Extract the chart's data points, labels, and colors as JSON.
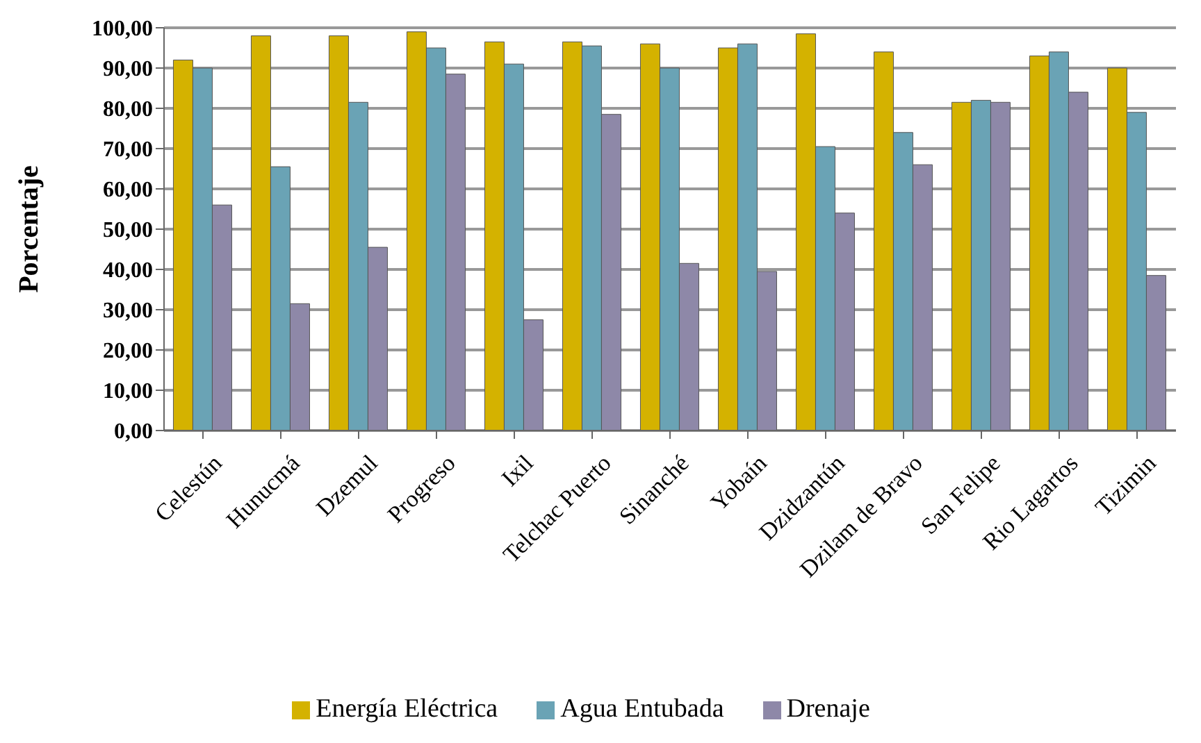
{
  "chart_data": {
    "type": "bar",
    "ylabel": "Porcentaje",
    "categories": [
      "Celestún",
      "Hunucmá",
      "Dzemul",
      "Progreso",
      "Ixil",
      "Telchac Puerto",
      "Sinanché",
      "Yobaín",
      "Dzidzantún",
      "Dzilam de Bravo",
      "San Felipe",
      "Rio Lagartos",
      "Tizimin"
    ],
    "series": [
      {
        "name": "Energía Eléctrica",
        "color": "#d4b200",
        "values": [
          92,
          98,
          98,
          99,
          96.5,
          96.5,
          96,
          95,
          98.5,
          94,
          81.5,
          93,
          90
        ]
      },
      {
        "name": "Agua Entubada",
        "color": "#6aa3b5",
        "values": [
          90,
          65.5,
          81.5,
          95,
          91,
          95.5,
          90,
          96,
          70.5,
          74,
          82,
          94,
          79
        ]
      },
      {
        "name": "Drenaje",
        "color": "#8e88a8",
        "values": [
          56,
          31.5,
          45.5,
          88.5,
          27.5,
          78.5,
          41.5,
          39.5,
          54,
          66,
          81.5,
          84,
          38.5
        ]
      }
    ],
    "ylim": [
      0,
      100
    ],
    "yticks": [
      {
        "value": 0,
        "label": "0,00"
      },
      {
        "value": 10,
        "label": "10,00"
      },
      {
        "value": 20,
        "label": "20,00"
      },
      {
        "value": 30,
        "label": "30,00"
      },
      {
        "value": 40,
        "label": "40,00"
      },
      {
        "value": 50,
        "label": "50,00"
      },
      {
        "value": 60,
        "label": "60,00"
      },
      {
        "value": 70,
        "label": "70,00"
      },
      {
        "value": 80,
        "label": "80,00"
      },
      {
        "value": 90,
        "label": "90,00"
      },
      {
        "value": 100,
        "label": "100,00"
      }
    ],
    "grid": "y",
    "legend": "bottom"
  }
}
